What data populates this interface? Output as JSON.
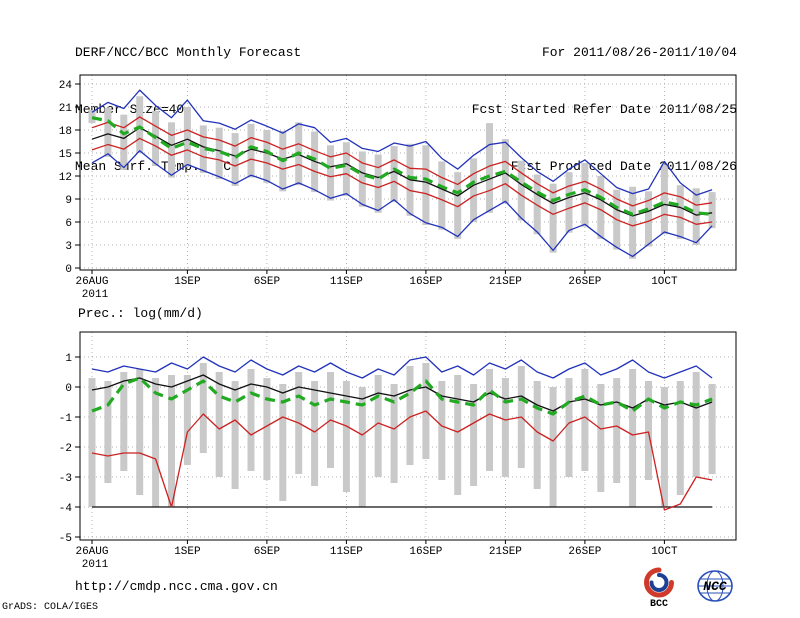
{
  "header": {
    "title": "DERF/NCC/BCC Monthly Forecast",
    "member_size": "Member Size=40",
    "temp_label": "Mean Surf. Temp.: °C",
    "for_range": "For 2011/08/26-2011/10/04",
    "fcst_started": "Fcst Started Refer Date 2011/08/25",
    "fcst_produced": "Fcst Produced Date 2011/08/26"
  },
  "footer": {
    "url": "http://cmdp.ncc.cma.gov.cn",
    "credit": "GrADS: COLA/IGES",
    "logos": {
      "bcc": "BCC",
      "ncc": "NCC"
    }
  },
  "colors": {
    "frame": "#000000",
    "grid": "#999999",
    "bar": "#c9c9c9",
    "blue": "#2233bb",
    "red": "#cc2222",
    "black": "#111111",
    "green": "#22aa22"
  },
  "chart_data": [
    {
      "type": "line",
      "title": "Mean Surf. Temp.: °C",
      "ylabel": "Mean Surf. Temp.: °C",
      "ylim": [
        0,
        24
      ],
      "yticks": [
        24,
        21,
        18,
        15,
        12,
        9,
        6,
        3,
        0
      ],
      "grid": true,
      "x_start": "2011-08-26",
      "x_tick_days": [
        0,
        6,
        11,
        16,
        21,
        26,
        31,
        36
      ],
      "x_tick_labels": [
        "26AUG",
        "1SEP",
        "6SEP",
        "11SEP",
        "16SEP",
        "21SEP",
        "26SEP",
        "1OCT"
      ],
      "x_sub_label": "2011",
      "bars": {
        "name": "ensemble-spread",
        "color": "#c9c9c9",
        "high": [
          20.6,
          20.9,
          20.0,
          22.4,
          20.5,
          19.0,
          21.0,
          18.6,
          18.3,
          17.6,
          18.8,
          18.0,
          17.9,
          19.0,
          17.8,
          16.0,
          16.4,
          15.2,
          14.8,
          15.9,
          16.2,
          16.0,
          13.9,
          12.5,
          14.3,
          18.9,
          16.8,
          14.0,
          12.2,
          11.0,
          12.5,
          13.7,
          12.0,
          10.2,
          10.6,
          10.0,
          13.5,
          10.8,
          10.4,
          9.9
        ],
        "low": [
          18.9,
          14.5,
          12.8,
          15.0,
          13.3,
          11.8,
          13.2,
          12.4,
          11.6,
          10.7,
          11.8,
          11.1,
          10.0,
          10.8,
          9.9,
          8.8,
          9.4,
          8.0,
          7.2,
          8.6,
          6.8,
          5.6,
          5.0,
          3.8,
          6.0,
          7.2,
          8.4,
          6.2,
          4.4,
          2.0,
          4.6,
          5.4,
          3.8,
          2.4,
          1.2,
          2.8,
          4.4,
          3.8,
          3.0,
          5.2
        ]
      },
      "series": [
        {
          "name": "ensemble-max",
          "color": "#2233bb",
          "values": [
            20.3,
            21.6,
            20.8,
            23.2,
            21.2,
            19.6,
            21.9,
            19.2,
            18.9,
            18.1,
            19.3,
            18.5,
            17.6,
            18.8,
            18.3,
            16.4,
            16.9,
            15.6,
            15.2,
            16.3,
            15.9,
            16.5,
            14.3,
            12.9,
            14.7,
            16.1,
            16.4,
            14.4,
            12.6,
            11.3,
            12.9,
            14.1,
            12.3,
            10.5,
            9.7,
            10.3,
            13.9,
            11.1,
            9.5,
            10.2
          ]
        },
        {
          "name": "ensemble-min",
          "color": "#2233bb",
          "values": [
            13.7,
            14.9,
            13.1,
            15.3,
            13.6,
            12.1,
            13.5,
            12.7,
            11.9,
            11.0,
            12.1,
            11.4,
            10.3,
            11.1,
            10.2,
            9.1,
            9.7,
            8.3,
            7.5,
            8.9,
            7.1,
            5.9,
            5.3,
            4.1,
            6.3,
            7.5,
            8.7,
            6.5,
            4.7,
            2.3,
            4.9,
            5.7,
            4.1,
            2.7,
            1.5,
            3.1,
            4.7,
            4.1,
            3.3,
            5.5
          ]
        },
        {
          "name": "upper-quartile",
          "color": "#cc2222",
          "values": [
            18.3,
            19.0,
            18.3,
            19.7,
            18.5,
            17.3,
            18.0,
            17.1,
            16.7,
            15.9,
            17.0,
            16.4,
            15.5,
            16.2,
            15.3,
            14.5,
            15.0,
            13.7,
            13.1,
            14.1,
            13.0,
            12.9,
            11.8,
            10.9,
            12.3,
            13.3,
            13.9,
            12.4,
            11.0,
            9.8,
            10.7,
            11.3,
            10.3,
            9.0,
            8.1,
            8.8,
            9.8,
            9.3,
            8.2,
            8.5
          ]
        },
        {
          "name": "lower-quartile",
          "color": "#cc2222",
          "values": [
            15.4,
            16.1,
            15.5,
            16.9,
            15.9,
            14.7,
            15.4,
            14.5,
            14.1,
            13.3,
            14.2,
            13.7,
            12.9,
            13.5,
            12.6,
            11.9,
            12.3,
            11.1,
            10.5,
            11.3,
            10.1,
            9.7,
            8.9,
            8.0,
            9.4,
            10.1,
            11.0,
            9.5,
            8.2,
            7.0,
            7.8,
            8.5,
            7.6,
            6.3,
            5.5,
            6.1,
            7.0,
            6.6,
            5.7,
            6.0
          ]
        },
        {
          "name": "ensemble-mean",
          "color": "#111111",
          "values": [
            16.8,
            17.5,
            16.9,
            18.3,
            17.2,
            16.0,
            16.8,
            15.8,
            15.3,
            14.6,
            15.5,
            15.0,
            14.2,
            14.8,
            13.9,
            13.2,
            13.6,
            12.4,
            11.8,
            12.6,
            11.5,
            11.2,
            10.3,
            9.4,
            10.8,
            11.6,
            12.4,
            10.9,
            9.6,
            8.4,
            9.2,
            9.8,
            8.9,
            7.6,
            6.8,
            7.4,
            8.3,
            7.9,
            6.9,
            7.2
          ]
        },
        {
          "name": "ensemble-median",
          "color": "#22aa22",
          "dash": "10,6",
          "width": 3.2,
          "values": [
            19.6,
            19.2,
            17.5,
            18.4,
            17.0,
            15.6,
            16.4,
            15.6,
            15.2,
            14.4,
            15.8,
            15.2,
            14.0,
            15.0,
            14.2,
            13.0,
            13.4,
            12.2,
            11.6,
            12.9,
            11.8,
            11.6,
            10.6,
            9.8,
            11.2,
            12.0,
            12.6,
            11.2,
            9.9,
            8.8,
            9.6,
            10.2,
            9.2,
            7.9,
            7.0,
            7.7,
            8.6,
            8.2,
            7.2,
            7.0
          ]
        }
      ]
    },
    {
      "type": "line",
      "title": "Prec.: log(mm/d)",
      "ylabel": "Prec.: log(mm/d)",
      "ylim": [
        -5,
        1.8
      ],
      "yticks": [
        1,
        0,
        -1,
        -2,
        -3,
        -4,
        -5
      ],
      "grid": true,
      "x_start": "2011-08-26",
      "x_tick_days": [
        0,
        6,
        11,
        16,
        21,
        26,
        31,
        36
      ],
      "x_tick_labels": [
        "26AUG",
        "1SEP",
        "6SEP",
        "11SEP",
        "16SEP",
        "21SEP",
        "26SEP",
        "1OCT"
      ],
      "x_sub_label": "2011",
      "bars": {
        "name": "ensemble-spread",
        "color": "#c9c9c9",
        "high": [
          0.3,
          0.2,
          0.5,
          0.6,
          0.3,
          0.4,
          0.4,
          0.8,
          0.5,
          0.2,
          0.6,
          0.3,
          0.1,
          0.5,
          0.2,
          0.5,
          0.2,
          0.0,
          0.4,
          0.1,
          0.7,
          0.8,
          0.2,
          0.4,
          0.1,
          0.6,
          0.3,
          0.7,
          0.2,
          0.0,
          0.3,
          0.6,
          0.1,
          0.3,
          0.6,
          0.2,
          0.0,
          0.2,
          0.5,
          0.1
        ],
        "low": [
          -4.0,
          -3.2,
          -2.8,
          -3.6,
          -4.0,
          -4.0,
          -2.6,
          -2.2,
          -3.0,
          -3.4,
          -2.8,
          -3.1,
          -3.8,
          -2.9,
          -3.3,
          -2.7,
          -3.5,
          -4.0,
          -3.0,
          -3.2,
          -2.6,
          -2.4,
          -3.1,
          -3.6,
          -3.3,
          -2.8,
          -3.0,
          -2.7,
          -3.4,
          -4.0,
          -3.0,
          -2.8,
          -3.5,
          -3.2,
          -4.0,
          -3.1,
          -4.0,
          -3.6,
          -3.0,
          -2.9
        ]
      },
      "series": [
        {
          "name": "ensemble-max",
          "color": "#2233bb",
          "values": [
            0.6,
            0.5,
            0.7,
            0.6,
            0.5,
            0.8,
            0.6,
            1.0,
            0.7,
            0.5,
            0.9,
            0.6,
            0.4,
            0.7,
            0.5,
            0.8,
            0.5,
            0.3,
            0.6,
            0.4,
            0.9,
            1.0,
            0.5,
            0.7,
            0.4,
            0.8,
            0.6,
            0.9,
            0.5,
            0.3,
            0.6,
            0.8,
            0.4,
            0.6,
            0.9,
            0.5,
            0.3,
            0.5,
            0.7,
            0.3
          ]
        },
        {
          "name": "ensemble-min",
          "color": "#111111",
          "values": [
            -4.0,
            -4.0,
            -4.0,
            -4.0,
            -4.0,
            -4.0,
            -4.0,
            -4.0,
            -4.0,
            -4.0,
            -4.0,
            -4.0,
            -4.0,
            -4.0,
            -4.0,
            -4.0,
            -4.0,
            -4.0,
            -4.0,
            -4.0,
            -4.0,
            -4.0,
            -4.0,
            -4.0,
            -4.0,
            -4.0,
            -4.0,
            -4.0,
            -4.0,
            -4.0,
            -4.0,
            -4.0,
            -4.0,
            -4.0,
            -4.0,
            -4.0,
            -4.0,
            -4.0,
            -4.0,
            -4.0
          ]
        },
        {
          "name": "lower-quartile",
          "color": "#cc2222",
          "values": [
            -2.2,
            -2.3,
            -2.2,
            -2.2,
            -2.4,
            -4.0,
            -1.5,
            -0.9,
            -1.4,
            -1.1,
            -1.6,
            -1.3,
            -1.0,
            -1.2,
            -1.5,
            -1.1,
            -1.3,
            -1.6,
            -1.2,
            -1.4,
            -1.0,
            -0.8,
            -1.3,
            -1.5,
            -1.2,
            -0.9,
            -1.1,
            -1.0,
            -1.5,
            -1.8,
            -1.2,
            -1.0,
            -1.4,
            -1.3,
            -1.6,
            -1.5,
            -4.1,
            -3.9,
            -3.0,
            -3.1
          ]
        },
        {
          "name": "ensemble-mean",
          "color": "#111111",
          "values": [
            -0.1,
            0.0,
            0.2,
            0.3,
            0.1,
            0.0,
            0.2,
            0.4,
            0.1,
            -0.1,
            0.1,
            0.0,
            -0.2,
            0.0,
            -0.1,
            -0.2,
            -0.3,
            -0.4,
            -0.2,
            -0.3,
            -0.1,
            0.0,
            -0.3,
            -0.4,
            -0.5,
            -0.2,
            -0.4,
            -0.3,
            -0.6,
            -0.8,
            -0.5,
            -0.4,
            -0.6,
            -0.5,
            -0.7,
            -0.4,
            -0.6,
            -0.5,
            -0.7,
            -0.5
          ]
        },
        {
          "name": "ensemble-median",
          "color": "#22aa22",
          "dash": "10,6",
          "width": 3.2,
          "values": [
            -0.8,
            -0.6,
            0.1,
            0.3,
            -0.2,
            -0.4,
            -0.1,
            0.2,
            -0.3,
            -0.5,
            -0.2,
            -0.4,
            -0.5,
            -0.3,
            -0.6,
            -0.4,
            -0.5,
            -0.6,
            -0.3,
            -0.5,
            -0.2,
            0.2,
            -0.4,
            -0.5,
            -0.6,
            -0.1,
            -0.5,
            -0.4,
            -0.7,
            -0.9,
            -0.5,
            -0.3,
            -0.6,
            -0.5,
            -0.8,
            -0.4,
            -0.7,
            -0.5,
            -0.6,
            -0.4
          ]
        }
      ]
    }
  ]
}
